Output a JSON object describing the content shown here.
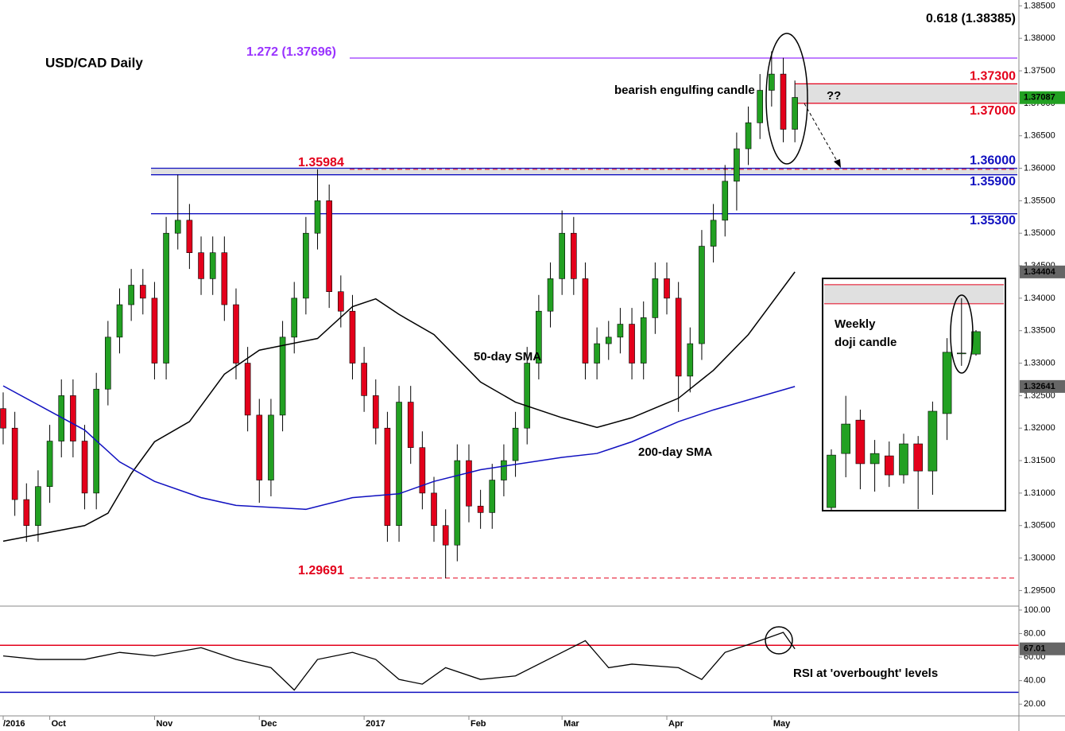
{
  "chart_data": [
    {
      "type": "candlestick",
      "title": "USD/CAD Daily",
      "open": [
        1.323,
        1.32,
        1.309,
        1.305,
        1.311,
        1.318,
        1.325,
        1.318,
        1.31,
        1.326,
        1.334,
        1.339,
        1.342,
        1.34,
        1.33,
        1.35,
        1.352,
        1.347,
        1.343,
        1.347,
        1.339,
        1.33,
        1.322,
        1.312,
        1.322,
        1.334,
        1.34,
        1.35,
        1.355,
        1.341,
        1.338,
        1.33,
        1.325,
        1.32,
        1.305,
        1.324,
        1.317,
        1.31,
        1.305,
        1.302,
        1.315,
        1.308,
        1.307,
        1.312,
        1.315,
        1.32,
        1.33,
        1.338,
        1.343,
        1.35,
        1.343,
        1.33,
        1.333,
        1.334,
        1.336,
        1.33,
        1.337,
        1.343,
        1.34,
        1.328,
        1.333,
        1.348,
        1.352,
        1.358,
        1.363,
        1.367,
        1.372,
        1.3745,
        1.366
      ],
      "high": [
        1.3255,
        1.3225,
        1.3115,
        1.3135,
        1.3205,
        1.3275,
        1.3275,
        1.3205,
        1.3285,
        1.3365,
        1.3415,
        1.3445,
        1.3445,
        1.3425,
        1.3525,
        1.359,
        1.3545,
        1.3495,
        1.3495,
        1.3495,
        1.3415,
        1.3325,
        1.3245,
        1.3245,
        1.3365,
        1.3425,
        1.3525,
        1.35984,
        1.3575,
        1.3435,
        1.3405,
        1.3325,
        1.3275,
        1.3225,
        1.3265,
        1.3265,
        1.3195,
        1.3125,
        1.3075,
        1.3175,
        1.3175,
        1.3105,
        1.3145,
        1.3175,
        1.3225,
        1.3325,
        1.3405,
        1.3455,
        1.3535,
        1.3525,
        1.3455,
        1.3355,
        1.3365,
        1.3385,
        1.3385,
        1.3395,
        1.3455,
        1.3455,
        1.3425,
        1.3355,
        1.3505,
        1.3545,
        1.3605,
        1.3655,
        1.3695,
        1.3745,
        1.378,
        1.377,
        1.3735
      ],
      "low": [
        1.3175,
        1.3065,
        1.3025,
        1.3025,
        1.3085,
        1.3155,
        1.3155,
        1.3075,
        1.3075,
        1.3235,
        1.3315,
        1.3365,
        1.3375,
        1.3275,
        1.3275,
        1.3475,
        1.3445,
        1.3405,
        1.3405,
        1.3365,
        1.3275,
        1.3195,
        1.3085,
        1.3095,
        1.3195,
        1.3315,
        1.3375,
        1.3475,
        1.3385,
        1.3355,
        1.3275,
        1.3225,
        1.3175,
        1.3025,
        1.3025,
        1.3145,
        1.3075,
        1.3025,
        1.29691,
        1.2995,
        1.3055,
        1.3045,
        1.3045,
        1.3095,
        1.3125,
        1.3175,
        1.3275,
        1.3355,
        1.3405,
        1.3405,
        1.3275,
        1.3275,
        1.3305,
        1.3315,
        1.3275,
        1.3275,
        1.3345,
        1.3375,
        1.3225,
        1.3255,
        1.3305,
        1.3455,
        1.3495,
        1.3535,
        1.3605,
        1.3645,
        1.3695,
        1.364,
        1.364
      ],
      "close": [
        1.32,
        1.309,
        1.305,
        1.311,
        1.318,
        1.325,
        1.318,
        1.31,
        1.326,
        1.334,
        1.339,
        1.342,
        1.34,
        1.33,
        1.35,
        1.352,
        1.347,
        1.343,
        1.347,
        1.339,
        1.33,
        1.322,
        1.312,
        1.322,
        1.334,
        1.34,
        1.35,
        1.355,
        1.341,
        1.338,
        1.33,
        1.325,
        1.32,
        1.305,
        1.324,
        1.317,
        1.31,
        1.305,
        1.302,
        1.315,
        1.308,
        1.307,
        1.312,
        1.315,
        1.32,
        1.33,
        1.338,
        1.343,
        1.35,
        1.343,
        1.33,
        1.333,
        1.334,
        1.336,
        1.33,
        1.337,
        1.343,
        1.34,
        1.328,
        1.333,
        1.348,
        1.352,
        1.358,
        1.363,
        1.367,
        1.372,
        1.3745,
        1.366,
        1.3709
      ],
      "up_color": "#22a022",
      "down_color": "#e3001b",
      "xlim": [
        -0.273,
        87.24
      ],
      "ylim": [
        1.2926,
        1.3859
      ],
      "xticks": [
        {
          "value": 0,
          "label": "/2016"
        },
        {
          "value": 4,
          "label": "Oct"
        },
        {
          "value": 13,
          "label": "Nov"
        },
        {
          "value": 22,
          "label": "Dec"
        },
        {
          "value": 31,
          "label": "2017"
        },
        {
          "value": 40,
          "label": "Feb"
        },
        {
          "value": 48,
          "label": "Mar"
        },
        {
          "value": 57,
          "label": "Apr"
        },
        {
          "value": 66,
          "label": "May"
        }
      ],
      "yticks": [
        {
          "value": 1.385,
          "label": "1.38500"
        },
        {
          "value": 1.38,
          "label": "1.38000"
        },
        {
          "value": 1.375,
          "label": "1.37500"
        },
        {
          "value": 1.37,
          "label": "1.37000"
        },
        {
          "value": 1.365,
          "label": "1.36500"
        },
        {
          "value": 1.36,
          "label": "1.36000"
        },
        {
          "value": 1.355,
          "label": "1.35500"
        },
        {
          "value": 1.35,
          "label": "1.35000"
        },
        {
          "value": 1.345,
          "label": "1.34500"
        },
        {
          "value": 1.34,
          "label": "1.34000"
        },
        {
          "value": 1.335,
          "label": "1.33500"
        },
        {
          "value": 1.33,
          "label": "1.33000"
        },
        {
          "value": 1.325,
          "label": "1.32500"
        },
        {
          "value": 1.32,
          "label": "1.32000"
        },
        {
          "value": 1.315,
          "label": "1.31500"
        },
        {
          "value": 1.31,
          "label": "1.31000"
        },
        {
          "value": 1.305,
          "label": "1.30500"
        },
        {
          "value": 1.3,
          "label": "1.30000"
        },
        {
          "value": 1.295,
          "label": "1.29500"
        }
      ],
      "series": [
        {
          "name": "50-day SMA",
          "color": "#000000",
          "x": [
            0,
            7,
            9,
            11,
            13,
            16,
            19,
            22,
            27,
            30,
            32,
            34,
            37,
            41,
            44,
            48,
            51,
            54,
            58,
            61,
            64,
            68
          ],
          "values": [
            1.3026,
            1.305,
            1.3069,
            1.313,
            1.3179,
            1.321,
            1.3283,
            1.332,
            1.3338,
            1.3387,
            1.3399,
            1.3375,
            1.3344,
            1.3271,
            1.324,
            1.3216,
            1.3201,
            1.3216,
            1.3246,
            1.3289,
            1.3344,
            1.34404
          ]
        },
        {
          "name": "200-day SMA",
          "color": "#1010c0",
          "x": [
            0,
            7,
            10,
            13,
            17,
            20,
            26,
            30,
            34,
            37,
            41,
            48,
            51,
            54,
            58,
            61,
            68
          ],
          "values": [
            1.3265,
            1.3197,
            1.3148,
            1.3118,
            1.3093,
            1.3081,
            1.3075,
            1.3093,
            1.3099,
            1.3118,
            1.3136,
            1.3155,
            1.3161,
            1.3179,
            1.321,
            1.3228,
            1.32641
          ]
        }
      ],
      "levels": [
        {
          "value": 1.38385,
          "label": "0.618 (1.38385)",
          "color": "#000000"
        },
        {
          "value": 1.37696,
          "label": "1.272 (1.37696)",
          "color": "#9933ff"
        },
        {
          "value": 1.373,
          "label": "1.37300",
          "color": "#e3001b"
        },
        {
          "value": 1.37,
          "label": "1.37000",
          "color": "#e3001b"
        },
        {
          "value": 1.36,
          "label": "1.36000",
          "color": "#1010c0"
        },
        {
          "value": 1.359,
          "label": "1.35900",
          "color": "#1010c0"
        },
        {
          "value": 1.353,
          "label": "1.35300",
          "color": "#1010c0"
        },
        {
          "value": 1.35984,
          "label": "1.35984",
          "color": "#e3001b",
          "style": "dashed"
        },
        {
          "value": 1.29691,
          "label": "1.29691",
          "color": "#e3001b",
          "style": "dashed"
        }
      ],
      "annotations": [
        "bearish engulfing candle",
        "??"
      ],
      "price_tags": [
        {
          "value": 1.37087,
          "color": "#22a022"
        },
        {
          "value": 1.34404,
          "color": "#666666"
        },
        {
          "value": 1.32641,
          "color": "#666666"
        }
      ]
    },
    {
      "type": "line",
      "title": "RSI at 'overbought' levels",
      "color": "#000000",
      "x": [
        0,
        3,
        7,
        10,
        13,
        17,
        20,
        23,
        25,
        27,
        30,
        32,
        34,
        36,
        38,
        41,
        44,
        48,
        50,
        52,
        54,
        58,
        60,
        62,
        65,
        67,
        68
      ],
      "values": [
        61,
        58,
        58,
        64,
        61,
        68,
        58,
        51,
        32,
        58,
        64,
        58,
        41,
        37,
        51,
        41,
        44,
        64,
        74,
        51,
        54,
        51,
        41,
        64,
        74,
        81,
        67.01
      ],
      "ylim": [
        10,
        102
      ],
      "yticks": [
        {
          "value": 100,
          "label": "100.00"
        },
        {
          "value": 80,
          "label": "80.00"
        },
        {
          "value": 60,
          "label": "60.00"
        },
        {
          "value": 40,
          "label": "40.00"
        },
        {
          "value": 20,
          "label": "20.00"
        }
      ],
      "levels": [
        {
          "value": 70,
          "color": "#e3001b"
        },
        {
          "value": 30,
          "color": "#1010c0"
        }
      ],
      "tag": {
        "value": 67.01,
        "color": "#666666"
      }
    },
    {
      "type": "candlestick",
      "annotations": [
        "Weekly",
        "doji candle"
      ],
      "open": [
        1.2912,
        1.3119,
        1.3247,
        1.308,
        1.311,
        1.3037,
        1.3156,
        1.3052,
        1.3272,
        1.3501,
        1.35
      ],
      "high": [
        1.3135,
        1.334,
        1.3287,
        1.3171,
        1.3165,
        1.3195,
        1.3186,
        1.3318,
        1.3561,
        1.3714,
        1.3592
      ],
      "low": [
        1.29,
        1.3028,
        1.2982,
        1.2973,
        1.2991,
        1.3004,
        1.2906,
        1.2961,
        1.3171,
        1.3455,
        1.3494
      ],
      "close": [
        1.3113,
        1.3232,
        1.308,
        1.3119,
        1.3037,
        1.3156,
        1.3052,
        1.3281,
        1.3507,
        1.3504,
        1.3586
      ],
      "up_color": "#22a022",
      "down_color": "#e3001b",
      "ylim": [
        1.29,
        1.379
      ],
      "zone": [
        1.3693,
        1.3766
      ]
    }
  ]
}
